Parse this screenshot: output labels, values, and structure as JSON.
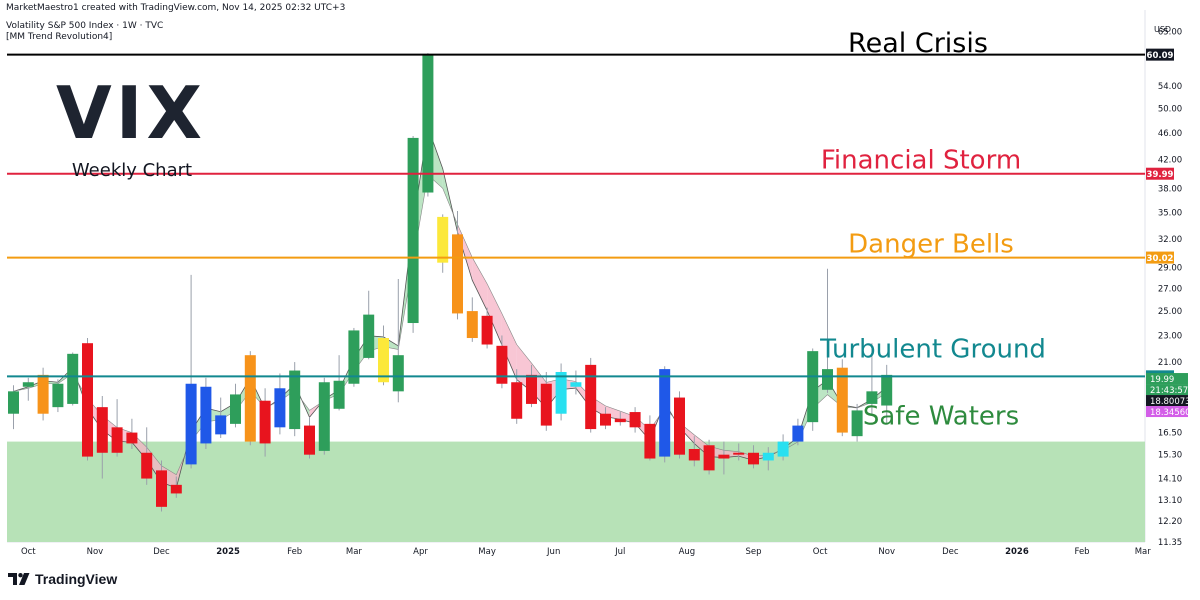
{
  "header": {
    "created": "MarketMaestro1 created with TradingView.com, Nov 14, 2025 02:32 UTC+3",
    "symbol": "Volatility S&P 500 Index · 1W · TVC",
    "indicator": "[MM Trend Revolution4]"
  },
  "footer": {
    "brand": "TradingView"
  },
  "colors": {
    "up": "#2e9e5b",
    "down": "#e8141e",
    "blue": "#1f58e8",
    "orange": "#f7931a",
    "yellow": "#fce83a",
    "cyan": "#28e0f0",
    "safe_fill": "#b7e2b7",
    "crisis": "#000000",
    "storm": "#e0223f",
    "danger": "#f39c12",
    "turbulent": "#12888f",
    "safe": "#2e8b3e"
  },
  "chart_data": {
    "type": "candlestick",
    "title": "VIX",
    "subtitle": "Weekly Chart",
    "currency": "USD",
    "ylim": [
      11.35,
      70
    ],
    "scale": "log",
    "y_ticks": [
      "65.00",
      "60.00",
      "54.00",
      "50.00",
      "46.00",
      "42.00",
      "38.00",
      "35.00",
      "32.00",
      "29.00",
      "27.00",
      "25.00",
      "23.00",
      "21.00",
      "18.50",
      "16.50",
      "15.30",
      "14.10",
      "13.10",
      "12.20",
      "11.35"
    ],
    "x_ticks": [
      {
        "label": "Oct",
        "i": 1
      },
      {
        "label": "Nov",
        "i": 5.5
      },
      {
        "label": "Dec",
        "i": 10
      },
      {
        "label": "2025",
        "i": 14.5
      },
      {
        "label": "Feb",
        "i": 19
      },
      {
        "label": "Mar",
        "i": 23
      },
      {
        "label": "Apr",
        "i": 27.5
      },
      {
        "label": "May",
        "i": 32
      },
      {
        "label": "Jun",
        "i": 36.5
      },
      {
        "label": "Jul",
        "i": 41
      },
      {
        "label": "Aug",
        "i": 45.5
      },
      {
        "label": "Sep",
        "i": 50
      },
      {
        "label": "Oct",
        "i": 54.5
      },
      {
        "label": "Nov",
        "i": 59
      },
      {
        "label": "Dec",
        "i": 63.3
      },
      {
        "label": "2026",
        "i": 67.8
      },
      {
        "label": "Feb",
        "i": 72.2
      },
      {
        "label": "Mar",
        "i": 76.3
      }
    ],
    "levels": [
      {
        "name": "Real Crisis",
        "value": 60.09,
        "label": "60.09",
        "color": "#000000"
      },
      {
        "name": "Financial Storm",
        "value": 39.99,
        "label": "39.99",
        "color": "#e0223f"
      },
      {
        "name": "Danger Bells",
        "value": 30.02,
        "label": "30.02",
        "color": "#f39c12"
      },
      {
        "name": "Turbulent Ground",
        "value": 20.0,
        "label": "20.00",
        "color": "#12888f"
      },
      {
        "name": "Safe Waters",
        "value": 16.0,
        "label": "",
        "color": "#2e8b3e"
      }
    ],
    "price_tags": [
      {
        "label": "19.99",
        "value": 19.85,
        "bg": "#2e9e5b"
      },
      {
        "label": "21:43:57",
        "value": 19.2,
        "bg": "#2e9e5b"
      },
      {
        "label": "18.800732",
        "value": 18.7,
        "bg": "#131722"
      },
      {
        "label": "18.345605",
        "value": 18.15,
        "bg": "#d35ee8"
      }
    ],
    "candles": [
      {
        "o": 17.6,
        "h": 19.4,
        "l": 16.7,
        "c": 19.0,
        "col": "up"
      },
      {
        "o": 19.3,
        "h": 19.9,
        "l": 18.4,
        "c": 19.6,
        "col": "up"
      },
      {
        "o": 17.6,
        "h": 20.6,
        "l": 17.2,
        "c": 20.1,
        "col": "orange"
      },
      {
        "o": 18.0,
        "h": 19.8,
        "l": 17.7,
        "c": 19.5,
        "col": "up"
      },
      {
        "o": 18.2,
        "h": 21.7,
        "l": 18.1,
        "c": 21.6,
        "col": "up"
      },
      {
        "o": 22.4,
        "h": 22.8,
        "l": 15.0,
        "c": 15.2,
        "col": "down"
      },
      {
        "o": 18.0,
        "h": 18.7,
        "l": 14.1,
        "c": 15.4,
        "col": "down"
      },
      {
        "o": 16.8,
        "h": 18.5,
        "l": 15.2,
        "c": 15.4,
        "col": "down"
      },
      {
        "o": 16.5,
        "h": 17.3,
        "l": 15.6,
        "c": 15.9,
        "col": "down"
      },
      {
        "o": 15.4,
        "h": 16.8,
        "l": 13.8,
        "c": 14.1,
        "col": "down"
      },
      {
        "o": 14.5,
        "h": 15.0,
        "l": 12.6,
        "c": 12.8,
        "col": "down"
      },
      {
        "o": 13.8,
        "h": 14.2,
        "l": 13.2,
        "c": 13.4,
        "col": "down"
      },
      {
        "o": 14.8,
        "h": 28.3,
        "l": 14.6,
        "c": 19.5,
        "col": "blue"
      },
      {
        "o": 15.9,
        "h": 19.9,
        "l": 15.6,
        "c": 19.3,
        "col": "blue"
      },
      {
        "o": 16.4,
        "h": 18.6,
        "l": 16.2,
        "c": 17.5,
        "col": "blue"
      },
      {
        "o": 17.0,
        "h": 19.5,
        "l": 16.8,
        "c": 18.8,
        "col": "up"
      },
      {
        "o": 16.0,
        "h": 21.8,
        "l": 15.8,
        "c": 21.5,
        "col": "orange"
      },
      {
        "o": 18.4,
        "h": 19.2,
        "l": 15.2,
        "c": 15.9,
        "col": "down"
      },
      {
        "o": 16.8,
        "h": 20.2,
        "l": 16.4,
        "c": 19.2,
        "col": "blue"
      },
      {
        "o": 16.7,
        "h": 21.0,
        "l": 16.3,
        "c": 20.4,
        "col": "up"
      },
      {
        "o": 16.9,
        "h": 17.4,
        "l": 15.1,
        "c": 15.3,
        "col": "down"
      },
      {
        "o": 15.5,
        "h": 19.9,
        "l": 15.3,
        "c": 19.6,
        "col": "up"
      },
      {
        "o": 17.9,
        "h": 21.5,
        "l": 17.8,
        "c": 19.7,
        "col": "up"
      },
      {
        "o": 19.5,
        "h": 23.6,
        "l": 19.3,
        "c": 23.4,
        "col": "up"
      },
      {
        "o": 21.3,
        "h": 26.8,
        "l": 21.2,
        "c": 24.7,
        "col": "up"
      },
      {
        "o": 19.6,
        "h": 23.8,
        "l": 19.4,
        "c": 22.8,
        "col": "yellow"
      },
      {
        "o": 19.0,
        "h": 27.9,
        "l": 18.3,
        "c": 21.5,
        "col": "up"
      },
      {
        "o": 24.0,
        "h": 45.5,
        "l": 23.2,
        "c": 45.2,
        "col": "up"
      },
      {
        "o": 37.5,
        "h": 60.4,
        "l": 37.0,
        "c": 60.1,
        "col": "up"
      },
      {
        "o": 29.5,
        "h": 34.8,
        "l": 28.5,
        "c": 34.5,
        "col": "yellow"
      },
      {
        "o": 32.5,
        "h": 35.2,
        "l": 24.3,
        "c": 24.8,
        "col": "orange"
      },
      {
        "o": 25.0,
        "h": 26.2,
        "l": 22.5,
        "c": 22.8,
        "col": "orange"
      },
      {
        "o": 24.6,
        "h": 25.3,
        "l": 22.0,
        "c": 22.3,
        "col": "down"
      },
      {
        "o": 22.2,
        "h": 23.0,
        "l": 19.2,
        "c": 19.5,
        "col": "down"
      },
      {
        "o": 19.6,
        "h": 20.5,
        "l": 17.0,
        "c": 17.3,
        "col": "down"
      },
      {
        "o": 20.1,
        "h": 20.8,
        "l": 18.0,
        "c": 18.2,
        "col": "down"
      },
      {
        "o": 19.5,
        "h": 20.3,
        "l": 16.6,
        "c": 16.9,
        "col": "down"
      },
      {
        "o": 17.6,
        "h": 20.9,
        "l": 17.2,
        "c": 20.3,
        "col": "cyan"
      },
      {
        "o": 19.6,
        "h": 20.4,
        "l": 18.8,
        "c": 19.3,
        "col": "cyan"
      },
      {
        "o": 20.8,
        "h": 21.3,
        "l": 16.5,
        "c": 16.7,
        "col": "down"
      },
      {
        "o": 17.6,
        "h": 18.0,
        "l": 16.7,
        "c": 16.9,
        "col": "down"
      },
      {
        "o": 17.3,
        "h": 17.7,
        "l": 16.9,
        "c": 17.1,
        "col": "down"
      },
      {
        "o": 17.7,
        "h": 18.0,
        "l": 16.5,
        "c": 16.8,
        "col": "down"
      },
      {
        "o": 17.0,
        "h": 17.5,
        "l": 15.0,
        "c": 15.1,
        "col": "down"
      },
      {
        "o": 15.2,
        "h": 20.7,
        "l": 14.9,
        "c": 20.5,
        "col": "blue"
      },
      {
        "o": 18.6,
        "h": 19.0,
        "l": 15.1,
        "c": 15.3,
        "col": "down"
      },
      {
        "o": 15.6,
        "h": 16.3,
        "l": 14.7,
        "c": 15.0,
        "col": "down"
      },
      {
        "o": 15.8,
        "h": 16.1,
        "l": 14.3,
        "c": 14.5,
        "col": "down"
      },
      {
        "o": 15.3,
        "h": 16.0,
        "l": 14.3,
        "c": 15.1,
        "col": "down"
      },
      {
        "o": 15.4,
        "h": 15.9,
        "l": 15.0,
        "c": 15.3,
        "col": "down"
      },
      {
        "o": 15.4,
        "h": 15.8,
        "l": 14.6,
        "c": 14.8,
        "col": "down"
      },
      {
        "o": 15.0,
        "h": 15.7,
        "l": 14.5,
        "c": 15.4,
        "col": "cyan"
      },
      {
        "o": 15.2,
        "h": 16.4,
        "l": 15.0,
        "c": 16.0,
        "col": "cyan"
      },
      {
        "o": 16.0,
        "h": 17.3,
        "l": 15.8,
        "c": 16.9,
        "col": "blue"
      },
      {
        "o": 17.1,
        "h": 22.0,
        "l": 16.6,
        "c": 21.8,
        "col": "up"
      },
      {
        "o": 19.1,
        "h": 28.9,
        "l": 18.9,
        "c": 20.5,
        "col": "up"
      },
      {
        "o": 20.6,
        "h": 21.2,
        "l": 16.3,
        "c": 16.5,
        "col": "orange"
      },
      {
        "o": 16.3,
        "h": 18.2,
        "l": 16.0,
        "c": 17.8,
        "col": "up"
      },
      {
        "o": 18.2,
        "h": 22.4,
        "l": 17.5,
        "c": 19.0,
        "col": "up"
      },
      {
        "o": 18.1,
        "h": 20.8,
        "l": 17.0,
        "c": 20.1,
        "col": "up"
      }
    ]
  }
}
